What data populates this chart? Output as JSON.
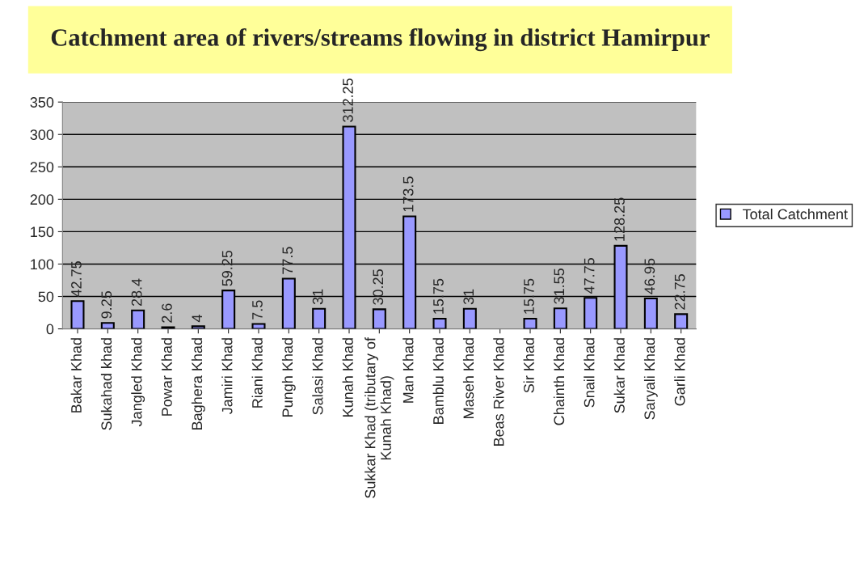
{
  "chart_data": {
    "type": "bar",
    "title": "Catchment area of rivers/streams flowing in district Hamirpur",
    "categories": [
      "Bakar Khad",
      "Sukahad khad",
      "Jangled Khad",
      "Powar Khad",
      "Baghera Khad",
      "Jamiri Khad",
      "Riani Khad",
      "Pungh Khad",
      "Salasi Khad",
      "Kunah Khad",
      "Sukkar Khad (tributary of\nKunah Khad)",
      "Man Khad",
      "Bamblu Khad",
      "Maseh Khad",
      "Beas River Khad",
      "Sir Khad",
      "Chainth Khad",
      "Snail Khad",
      "Sukar Khad",
      "Saryali Khad",
      "Garli Khad"
    ],
    "series": [
      {
        "name": "Total Catchment",
        "color": "#9999ff",
        "values": [
          42.75,
          9.25,
          28.4,
          2.6,
          4,
          59.25,
          7.5,
          77.5,
          31,
          312.25,
          30.25,
          173.5,
          15.75,
          31,
          null,
          15.75,
          31.55,
          47.75,
          128.25,
          46.95,
          22.75
        ]
      }
    ],
    "data_labels": true,
    "ylim": [
      0,
      350
    ],
    "yticks": [
      0,
      50,
      100,
      150,
      200,
      250,
      300,
      350
    ],
    "grid": "y",
    "legend": "right"
  }
}
